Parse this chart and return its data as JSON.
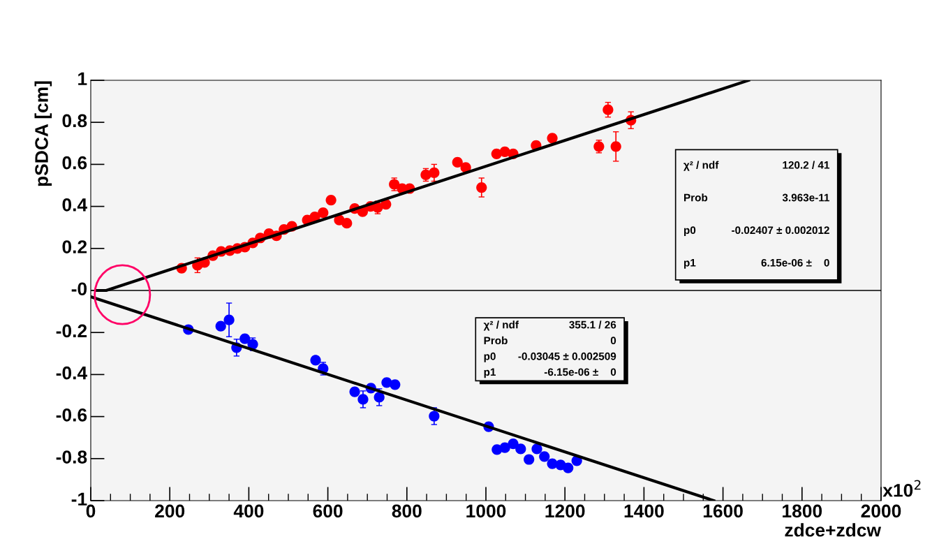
{
  "chart_data": {
    "type": "scatter",
    "xlabel": "zdce+zdcw",
    "ylabel": "pSDCA [cm]",
    "xlim": [
      0,
      2000
    ],
    "xticks": [
      0,
      200,
      400,
      600,
      800,
      1000,
      1200,
      1400,
      1600,
      1800,
      2000
    ],
    "ylim": [
      -1,
      1
    ],
    "yticks": [
      -1,
      -0.8,
      -0.6,
      -0.4,
      -0.2,
      {
        "value": 0,
        "label": "-0"
      },
      0.2,
      0.4,
      0.6,
      0.8,
      1
    ],
    "grid": false,
    "legend": false,
    "marker": "circle",
    "ref_lines": [
      {
        "axis": "y",
        "value": 0,
        "color": "#000000"
      }
    ],
    "series": [
      {
        "color": "#ff0000",
        "x": [
          230,
          270,
          288,
          309,
          330,
          352,
          371,
          390,
          410,
          429,
          451,
          470,
          489,
          509,
          548,
          567,
          588,
          608,
          629,
          648,
          668,
          688,
          708,
          726,
          747,
          768,
          788,
          807,
          848,
          869,
          928,
          949,
          989,
          1027,
          1048,
          1069,
          1127,
          1168,
          1286,
          1309,
          1329,
          1367
        ],
        "values": [
          0.106,
          0.12,
          0.133,
          0.166,
          0.186,
          0.19,
          0.2,
          0.206,
          0.226,
          0.25,
          0.27,
          0.26,
          0.29,
          0.305,
          0.335,
          0.35,
          0.37,
          0.43,
          0.335,
          0.32,
          0.39,
          0.375,
          0.4,
          0.395,
          0.41,
          0.505,
          0.485,
          0.485,
          0.55,
          0.56,
          0.61,
          0.585,
          0.49,
          0.65,
          0.66,
          0.65,
          0.69,
          0.725,
          0.685,
          0.86,
          0.685,
          0.81
        ],
        "errors": [
          null,
          0.035,
          null,
          null,
          null,
          null,
          null,
          null,
          null,
          null,
          null,
          null,
          null,
          null,
          null,
          null,
          null,
          null,
          null,
          null,
          null,
          null,
          null,
          0.03,
          null,
          0.03,
          null,
          null,
          0.03,
          0.04,
          null,
          null,
          0.045,
          null,
          null,
          null,
          null,
          null,
          0.03,
          0.035,
          0.07,
          0.04
        ]
      },
      {
        "color": "#0000ff",
        "x": [
          247,
          329,
          350,
          369,
          390,
          410,
          569,
          588,
          668,
          689,
          709,
          730,
          749,
          770,
          869,
          1007,
          1028,
          1048,
          1069,
          1088,
          1109,
          1129,
          1148,
          1168,
          1189,
          1208,
          1230
        ],
        "values": [
          -0.186,
          -0.17,
          -0.14,
          -0.272,
          -0.23,
          -0.256,
          -0.332,
          -0.372,
          -0.482,
          -0.518,
          -0.465,
          -0.508,
          -0.438,
          -0.448,
          -0.598,
          -0.648,
          -0.757,
          -0.748,
          -0.73,
          -0.754,
          -0.804,
          -0.754,
          -0.79,
          -0.824,
          -0.83,
          -0.844,
          -0.81
        ],
        "errors": [
          null,
          null,
          0.08,
          0.04,
          null,
          0.03,
          null,
          0.03,
          null,
          0.04,
          null,
          0.04,
          null,
          null,
          0.04,
          null,
          null,
          null,
          null,
          null,
          null,
          null,
          null,
          null,
          null,
          null,
          null
        ]
      },
      {
        "type": "line",
        "color": "#000000",
        "marker": "none",
        "x": [
          15,
          39,
          1665
        ],
        "values": [
          0,
          0,
          1
        ]
      },
      {
        "type": "line",
        "color": "#000000",
        "marker": "none",
        "x": [
          0,
          1577
        ],
        "values": [
          -0.03,
          -1.0
        ]
      }
    ],
    "annotations": [
      "x10$^{2}$",
      "χ² / ndf",
      "120.2 / 41",
      "Prob",
      "3.963e-11",
      "p0",
      "-0.02407 ± 0.002012",
      "p1",
      "6.15e-06 ±    0",
      "χ² / ndf",
      "355.1 / 26",
      "Prob",
      "0",
      "p0",
      "-0.03045 ± 0.002509",
      "p1",
      "-6.15e-06 ±    0"
    ]
  }
}
